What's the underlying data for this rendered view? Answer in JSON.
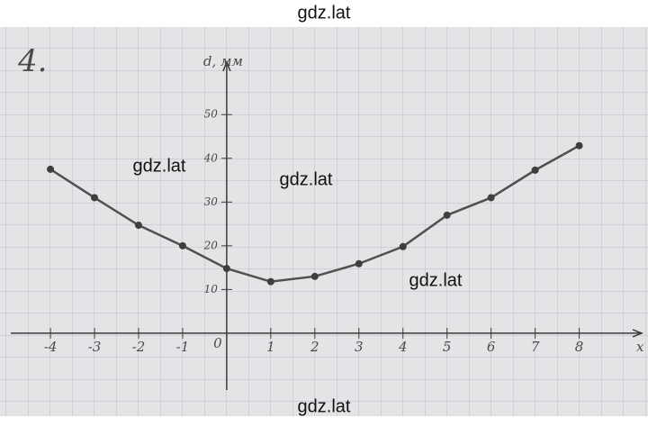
{
  "chart_data": {
    "type": "line",
    "task_number": "4.",
    "y_label": "d, мм",
    "x_label": "x",
    "origin_label": "0",
    "x": [
      -4,
      -3,
      -2,
      -1,
      0,
      1,
      2,
      3,
      4,
      5,
      6,
      7,
      8
    ],
    "values": [
      37.5,
      31,
      24.7,
      20,
      14.8,
      11.8,
      13,
      15.9,
      19.8,
      27,
      31,
      37.3,
      42.9
    ],
    "color": "#505050",
    "xlim": [
      -4.9,
      9.5
    ],
    "ylim": [
      -13,
      62
    ],
    "xticks": [
      -4,
      -3,
      -2,
      -1,
      1,
      2,
      3,
      4,
      5,
      6,
      7,
      8
    ],
    "yticks": [
      10,
      20,
      30,
      40,
      50
    ]
  },
  "watermarks": [
    "gdz.lat",
    "gdz.lat",
    "gdz.lat",
    "gdz.lat",
    "gdz.lat"
  ]
}
